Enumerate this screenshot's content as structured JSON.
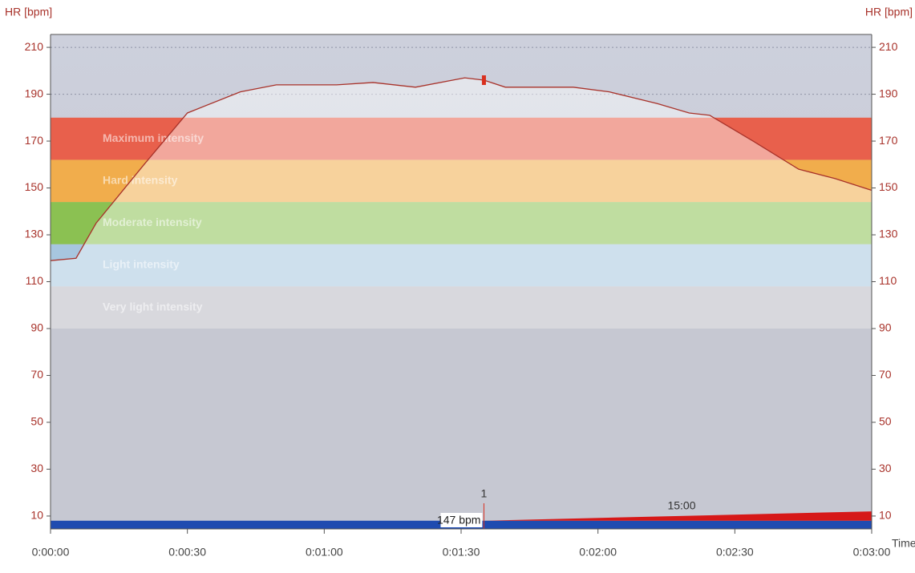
{
  "chart_data": {
    "type": "line",
    "y_label": "HR [bpm]",
    "y2_label": "HR [bpm]",
    "x_label": "Time",
    "xlim": [
      0,
      180
    ],
    "xticks": [
      {
        "value": 0,
        "label": "0:00:00"
      },
      {
        "value": 30,
        "label": "0:00:30"
      },
      {
        "value": 60,
        "label": "0:01:00"
      },
      {
        "value": 90,
        "label": "0:01:30"
      },
      {
        "value": 120,
        "label": "0:02:00"
      },
      {
        "value": 150,
        "label": "0:02:30"
      },
      {
        "value": 180,
        "label": "0:03:00"
      }
    ],
    "ylim": [
      4.5,
      215.5
    ],
    "yticks": [
      10,
      30,
      50,
      70,
      90,
      110,
      130,
      150,
      170,
      190,
      210
    ],
    "y2lim": [
      4.5,
      215.5
    ],
    "y2ticks": [
      10,
      30,
      50,
      70,
      90,
      110,
      130,
      150,
      170,
      190,
      210
    ],
    "grid": true,
    "zones": [
      {
        "name": "Very light intensity",
        "range": [
          90,
          108
        ],
        "color": "#b9b9c1"
      },
      {
        "name": "Light intensity",
        "range": [
          108,
          126
        ],
        "color": "#a7c6df"
      },
      {
        "name": "Moderate intensity",
        "range": [
          126,
          144
        ],
        "color": "#8bc152"
      },
      {
        "name": "Hard intensity",
        "range": [
          144,
          162
        ],
        "color": "#f1ad4c"
      },
      {
        "name": "Maximum intensity",
        "range": [
          162,
          180
        ],
        "color": "#e8604c"
      }
    ],
    "series": [
      {
        "name": "HR",
        "color": "#a8322a",
        "x": [
          0,
          5.6,
          10,
          20.5,
          30,
          41.6,
          49.5,
          62.7,
          70.7,
          80,
          90.8,
          95,
          99.7,
          114.6,
          122.5,
          133,
          140,
          144.5,
          154,
          164,
          172,
          180
        ],
        "values": [
          119,
          120,
          135,
          160,
          182,
          191,
          194,
          194,
          195,
          193,
          197,
          196,
          193,
          193,
          191,
          186,
          182,
          181,
          170,
          158,
          154,
          149
        ]
      }
    ],
    "lap": {
      "name": "1",
      "x": 95,
      "values": [
        147
      ],
      "value_labels": [
        "147 bpm"
      ],
      "color": "#d9301f"
    },
    "base_bar": {
      "value": 8,
      "color": "#1f4bb0"
    },
    "speed": {
      "label": "15:00",
      "x": [
        95,
        180
      ],
      "values": [
        8,
        12
      ],
      "color": "#d61818"
    }
  }
}
